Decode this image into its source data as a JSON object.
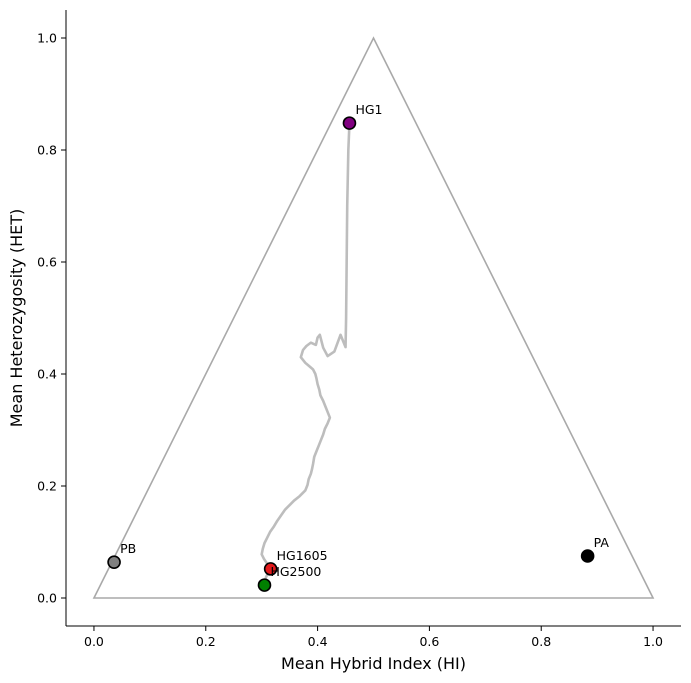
{
  "chart_data": {
    "type": "scatter",
    "title": "",
    "xlabel": "Mean Hybrid Index (HI)",
    "ylabel": "Mean Heterozygosity (HET)",
    "xlim": [
      -0.05,
      1.05
    ],
    "ylim": [
      -0.05,
      1.05
    ],
    "xticks": [
      "0.0",
      "0.2",
      "0.4",
      "0.6",
      "0.8",
      "1.0"
    ],
    "yticks": [
      "0.0",
      "0.2",
      "0.4",
      "0.6",
      "0.8",
      "1.0"
    ],
    "grid": false,
    "triangle": [
      [
        0.0,
        0.0
      ],
      [
        0.5,
        1.0
      ],
      [
        1.0,
        0.0
      ]
    ],
    "trajectory": [
      [
        0.457,
        0.848
      ],
      [
        0.455,
        0.8
      ],
      [
        0.453,
        0.7
      ],
      [
        0.452,
        0.6
      ],
      [
        0.451,
        0.5
      ],
      [
        0.45,
        0.448
      ],
      [
        0.441,
        0.47
      ],
      [
        0.43,
        0.44
      ],
      [
        0.418,
        0.432
      ],
      [
        0.41,
        0.447
      ],
      [
        0.404,
        0.47
      ],
      [
        0.4,
        0.465
      ],
      [
        0.397,
        0.452
      ],
      [
        0.388,
        0.456
      ],
      [
        0.38,
        0.45
      ],
      [
        0.374,
        0.443
      ],
      [
        0.37,
        0.43
      ],
      [
        0.378,
        0.42
      ],
      [
        0.385,
        0.414
      ],
      [
        0.392,
        0.408
      ],
      [
        0.396,
        0.4
      ],
      [
        0.398,
        0.392
      ],
      [
        0.4,
        0.382
      ],
      [
        0.403,
        0.372
      ],
      [
        0.405,
        0.362
      ],
      [
        0.41,
        0.352
      ],
      [
        0.414,
        0.342
      ],
      [
        0.418,
        0.332
      ],
      [
        0.422,
        0.322
      ],
      [
        0.418,
        0.312
      ],
      [
        0.413,
        0.302
      ],
      [
        0.41,
        0.292
      ],
      [
        0.406,
        0.282
      ],
      [
        0.402,
        0.272
      ],
      [
        0.398,
        0.262
      ],
      [
        0.394,
        0.252
      ],
      [
        0.392,
        0.24
      ],
      [
        0.39,
        0.23
      ],
      [
        0.388,
        0.222
      ],
      [
        0.384,
        0.212
      ],
      [
        0.382,
        0.202
      ],
      [
        0.378,
        0.192
      ],
      [
        0.368,
        0.182
      ],
      [
        0.358,
        0.174
      ],
      [
        0.35,
        0.166
      ],
      [
        0.342,
        0.158
      ],
      [
        0.335,
        0.148
      ],
      [
        0.328,
        0.138
      ],
      [
        0.322,
        0.128
      ],
      [
        0.315,
        0.118
      ],
      [
        0.31,
        0.108
      ],
      [
        0.305,
        0.098
      ],
      [
        0.302,
        0.088
      ],
      [
        0.3,
        0.078
      ],
      [
        0.304,
        0.07
      ],
      [
        0.308,
        0.064
      ],
      [
        0.312,
        0.058
      ],
      [
        0.316,
        0.052
      ],
      [
        0.312,
        0.045
      ],
      [
        0.308,
        0.038
      ],
      [
        0.306,
        0.03
      ],
      [
        0.305,
        0.023
      ]
    ],
    "points": [
      {
        "label": "HG1",
        "x": 0.457,
        "y": 0.848,
        "color": "#800080"
      },
      {
        "label": "HG1605",
        "x": 0.316,
        "y": 0.052,
        "color": "#e31a1c"
      },
      {
        "label": "HG2500",
        "x": 0.305,
        "y": 0.023,
        "color": "#008000"
      },
      {
        "label": "PB",
        "x": 0.036,
        "y": 0.064,
        "color": "#808080"
      },
      {
        "label": "PA",
        "x": 0.883,
        "y": 0.075,
        "color": "#000000"
      }
    ],
    "colors": {
      "triangle": "#a9a9a9",
      "trajectory": "#bdbdbd",
      "axis": "#000000",
      "marker_edge": "#000000"
    }
  }
}
